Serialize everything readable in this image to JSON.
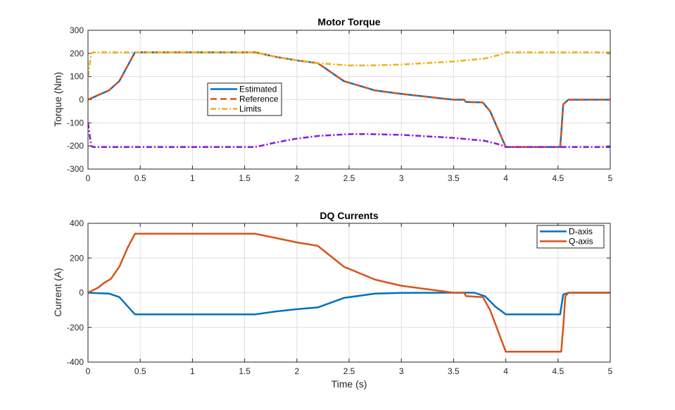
{
  "chart_data": [
    {
      "type": "line",
      "title": "Motor Torque",
      "xlabel": "",
      "ylabel": "Torque (Nm)",
      "xlim": [
        0,
        5
      ],
      "ylim": [
        -300,
        300
      ],
      "xticks": [
        0,
        0.5,
        1,
        1.5,
        2,
        2.5,
        3,
        3.5,
        4,
        4.5,
        5
      ],
      "yticks": [
        -300,
        -200,
        -100,
        0,
        100,
        200,
        300
      ],
      "grid": true,
      "legend_position": "center-left",
      "series": [
        {
          "name": "Estimated",
          "color": "#0072BD",
          "style": "solid",
          "x": [
            0,
            0.1,
            0.2,
            0.3,
            0.45,
            1.6,
            1.8,
            2.0,
            2.2,
            2.45,
            2.75,
            3.0,
            3.5,
            3.6,
            3.62,
            3.78,
            3.85,
            4.0,
            4.52,
            4.53,
            4.55,
            4.6,
            5
          ],
          "y": [
            0,
            20,
            40,
            80,
            205,
            205,
            185,
            170,
            158,
            80,
            40,
            25,
            0,
            0,
            -10,
            -12,
            -50,
            -205,
            -205,
            -150,
            -20,
            0,
            0
          ]
        },
        {
          "name": "Reference",
          "color": "#D95319",
          "style": "dashed",
          "x": [
            0,
            0.1,
            0.2,
            0.3,
            0.45,
            1.6,
            1.8,
            2.0,
            2.2,
            2.45,
            2.75,
            3.0,
            3.5,
            3.6,
            3.62,
            3.78,
            3.85,
            4.0,
            4.52,
            4.53,
            4.55,
            4.6,
            5
          ],
          "y": [
            0,
            20,
            40,
            80,
            205,
            205,
            185,
            170,
            158,
            80,
            40,
            25,
            0,
            0,
            -10,
            -12,
            -50,
            -205,
            -205,
            -150,
            -20,
            0,
            0
          ]
        },
        {
          "name": "Limits",
          "color": "#EDB120",
          "style": "dashdot",
          "x": [
            0,
            0.03,
            0.05,
            1.6,
            1.8,
            2.0,
            2.2,
            2.5,
            2.7,
            3.0,
            3.5,
            3.8,
            3.95,
            4.0,
            5
          ],
          "y": [
            100,
            200,
            205,
            205,
            185,
            170,
            158,
            148,
            148,
            152,
            165,
            178,
            195,
            205,
            205
          ]
        },
        {
          "color": "#8B1AD6",
          "style": "dashdot",
          "x": [
            0,
            0.03,
            0.05,
            1.6,
            1.8,
            2.0,
            2.2,
            2.5,
            2.7,
            3.0,
            3.5,
            3.8,
            3.95,
            4.0,
            5
          ],
          "y": [
            -100,
            -200,
            -205,
            -205,
            -185,
            -168,
            -157,
            -149,
            -149,
            -152,
            -165,
            -178,
            -195,
            -205,
            -205
          ]
        }
      ]
    },
    {
      "type": "line",
      "title": "DQ Currents",
      "xlabel": "Time (s)",
      "ylabel": "Current (A)",
      "xlim": [
        0,
        5
      ],
      "ylim": [
        -400,
        400
      ],
      "xticks": [
        0,
        0.5,
        1,
        1.5,
        2,
        2.5,
        3,
        3.5,
        4,
        4.5,
        5
      ],
      "yticks": [
        -400,
        -200,
        0,
        200,
        400
      ],
      "grid": true,
      "legend_position": "top-right",
      "series": [
        {
          "name": "D-axis",
          "color": "#0072BD",
          "style": "solid",
          "x": [
            0,
            0.2,
            0.3,
            0.45,
            1.6,
            1.8,
            2.0,
            2.2,
            2.45,
            2.75,
            3.0,
            3.5,
            3.7,
            3.8,
            3.9,
            4.0,
            4.52,
            4.55,
            4.6,
            5
          ],
          "y": [
            0,
            -5,
            -25,
            -125,
            -125,
            -108,
            -95,
            -85,
            -30,
            -5,
            -1,
            0,
            0,
            -20,
            -80,
            -125,
            -125,
            -10,
            0,
            0
          ]
        },
        {
          "name": "Q-axis",
          "color": "#D95319",
          "style": "solid",
          "x": [
            0,
            0.1,
            0.15,
            0.22,
            0.3,
            0.38,
            0.45,
            1.6,
            1.8,
            2.0,
            2.2,
            2.45,
            2.75,
            3.0,
            3.5,
            3.6,
            3.62,
            3.78,
            3.85,
            4.0,
            4.53,
            4.55,
            4.57,
            4.6,
            5
          ],
          "y": [
            0,
            30,
            55,
            80,
            150,
            260,
            340,
            340,
            315,
            290,
            270,
            150,
            75,
            40,
            0,
            0,
            -20,
            -25,
            -100,
            -340,
            -340,
            -200,
            -20,
            0,
            0
          ]
        }
      ]
    }
  ]
}
